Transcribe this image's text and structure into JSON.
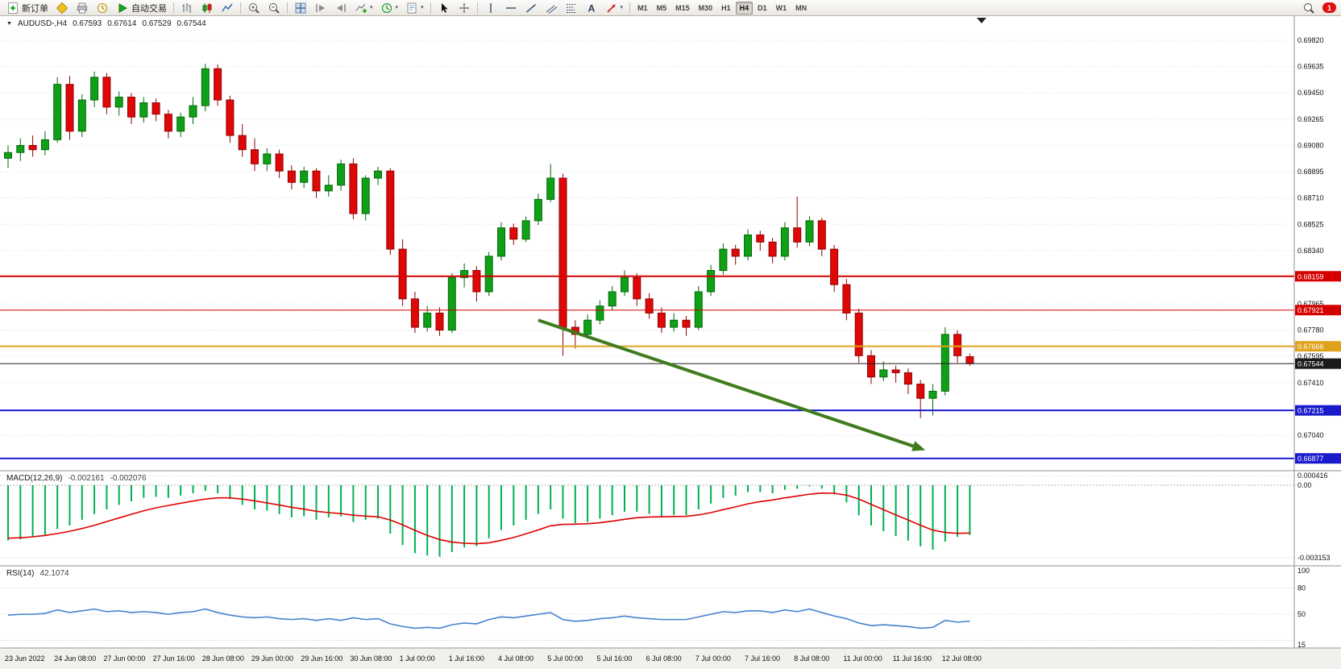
{
  "toolbar": {
    "new_order_label": "新订单",
    "autotrading_label": "自动交易",
    "badge_count": "1",
    "timeframes": [
      "M1",
      "M5",
      "M15",
      "M30",
      "H1",
      "H4",
      "D1",
      "W1",
      "MN"
    ],
    "active_timeframe": "H4",
    "items": [
      {
        "name": "new-order-button",
        "icon": "new-order-icon",
        "label": "新订单"
      },
      {
        "name": "metaeditor-button",
        "icon": "metaeditor-icon"
      },
      {
        "name": "print-button",
        "icon": "print-icon"
      },
      {
        "name": "history-center-button",
        "icon": "clock-icon"
      },
      {
        "name": "autotrading-button",
        "icon": "autotrading-play-icon",
        "label": "自动交易"
      },
      {
        "sep": true
      },
      {
        "name": "bar-chart-button",
        "icon": "bar-chart-icon"
      },
      {
        "name": "candlestick-chart-button",
        "icon": "candlestick-icon"
      },
      {
        "name": "line-chart-button",
        "icon": "line-chart-icon"
      },
      {
        "sep": true
      },
      {
        "name": "zoom-in-button",
        "icon": "zoom-in-icon"
      },
      {
        "name": "zoom-out-button",
        "icon": "zoom-out-icon"
      },
      {
        "sep": true
      },
      {
        "name": "tile-windows-button",
        "icon": "tile-windows-icon"
      },
      {
        "name": "auto-scroll-button",
        "icon": "auto-scroll-icon"
      },
      {
        "name": "chart-shift-button",
        "icon": "chart-shift-icon"
      },
      {
        "name": "indicators-button",
        "icon": "indicators-add-icon",
        "caret": true
      },
      {
        "name": "periods-button",
        "icon": "periods-clock-icon",
        "caret": true
      },
      {
        "name": "templates-button",
        "icon": "template-icon",
        "caret": true
      },
      {
        "sep": true
      },
      {
        "name": "cursor-button",
        "icon": "cursor-icon"
      },
      {
        "name": "crosshair-button",
        "icon": "crosshair-icon"
      },
      {
        "sep": true
      },
      {
        "name": "vertical-line-button",
        "icon": "vertical-line-icon"
      },
      {
        "name": "horizontal-line-button",
        "icon": "horizontal-line-icon"
      },
      {
        "name": "trendline-button",
        "icon": "trendline-icon"
      },
      {
        "name": "equidistant-channel-button",
        "icon": "channel-icon"
      },
      {
        "name": "fibonacci-button",
        "icon": "fibonacci-icon"
      },
      {
        "name": "text-button",
        "icon": "text-icon"
      },
      {
        "name": "arrows-button",
        "icon": "arrows-icon",
        "caret": true
      },
      {
        "sep": true
      }
    ]
  },
  "chart": {
    "symbol": "AUDUSD-,H4",
    "ohlc": {
      "open": "0.67593",
      "high": "0.67614",
      "low": "0.67529",
      "close": "0.67544"
    }
  },
  "indicators": {
    "macd": {
      "label": "MACD(12,26,9)",
      "value_main": "-0.002161",
      "value_signal": "-0.002076"
    },
    "rsi": {
      "label": "RSI(14)",
      "value": "42.1074"
    }
  },
  "chart_data": {
    "type": "candlestick",
    "symbol": "AUDUSD",
    "timeframe": "H4",
    "colors": {
      "up": "#0fa018",
      "down": "#e00707",
      "macd_hist": "#00b050",
      "macd_signal": "#e00000",
      "rsi_line": "#4583cf",
      "arrow": "#3e7c1d"
    },
    "price_axis": {
      "range": [
        0.66877,
        0.6982
      ],
      "ticks": [
        "0.69820",
        "0.69635",
        "0.69450",
        "0.69265",
        "0.69080",
        "0.68895",
        "0.68710",
        "0.68525",
        "0.68340",
        "0.67965",
        "0.67780",
        "0.67595",
        "0.67410",
        "0.67040"
      ]
    },
    "x_labels": [
      [
        0,
        "23 Jun 2022"
      ],
      [
        4,
        "24 Jun 08:00"
      ],
      [
        8,
        "27 Jun 00:00"
      ],
      [
        12,
        "27 Jun 16:00"
      ],
      [
        16,
        "28 Jun 08:00"
      ],
      [
        20,
        "29 Jun 00:00"
      ],
      [
        24,
        "29 Jun 16:00"
      ],
      [
        28,
        "30 Jun 08:00"
      ],
      [
        32,
        "1 Jul 00:00"
      ],
      [
        36,
        "1 Jul 16:00"
      ],
      [
        40,
        "4 Jul 08:00"
      ],
      [
        44,
        "5 Jul 00:00"
      ],
      [
        48,
        "5 Jul 16:00"
      ],
      [
        52,
        "6 Jul 08:00"
      ],
      [
        56,
        "7 Jul 00:00"
      ],
      [
        60,
        "7 Jul 16:00"
      ],
      [
        64,
        "8 Jul 08:00"
      ],
      [
        68,
        "11 Jul 00:00"
      ],
      [
        72,
        "11 Jul 16:00"
      ],
      [
        76,
        "12 Jul 08:00"
      ]
    ],
    "candles": [
      [
        0.6899,
        0.6908,
        0.6892,
        0.6903
      ],
      [
        0.6903,
        0.6913,
        0.6897,
        0.6908
      ],
      [
        0.6908,
        0.6915,
        0.69,
        0.6905
      ],
      [
        0.6905,
        0.6918,
        0.6901,
        0.6912
      ],
      [
        0.6912,
        0.6956,
        0.691,
        0.6951
      ],
      [
        0.6951,
        0.6957,
        0.6912,
        0.6918
      ],
      [
        0.6918,
        0.6944,
        0.6914,
        0.694
      ],
      [
        0.694,
        0.696,
        0.6935,
        0.6956
      ],
      [
        0.6956,
        0.6959,
        0.693,
        0.6935
      ],
      [
        0.6935,
        0.6946,
        0.6929,
        0.6942
      ],
      [
        0.6942,
        0.6945,
        0.6923,
        0.6928
      ],
      [
        0.6928,
        0.6942,
        0.6924,
        0.6938
      ],
      [
        0.6938,
        0.6941,
        0.6925,
        0.693
      ],
      [
        0.693,
        0.6933,
        0.6913,
        0.6918
      ],
      [
        0.6918,
        0.6931,
        0.6914,
        0.6928
      ],
      [
        0.6928,
        0.6942,
        0.6923,
        0.6936
      ],
      [
        0.6936,
        0.69655,
        0.6932,
        0.6962
      ],
      [
        0.6962,
        0.6965,
        0.6936,
        0.694
      ],
      [
        0.694,
        0.6943,
        0.691,
        0.6915
      ],
      [
        0.6915,
        0.6923,
        0.69,
        0.6905
      ],
      [
        0.6905,
        0.6913,
        0.689,
        0.6895
      ],
      [
        0.6895,
        0.6906,
        0.689,
        0.6902
      ],
      [
        0.6902,
        0.6905,
        0.6885,
        0.689
      ],
      [
        0.689,
        0.6894,
        0.6877,
        0.6882
      ],
      [
        0.6882,
        0.6893,
        0.6878,
        0.689
      ],
      [
        0.689,
        0.6892,
        0.6871,
        0.6876
      ],
      [
        0.6876,
        0.6887,
        0.6872,
        0.688
      ],
      [
        0.688,
        0.6898,
        0.6876,
        0.6895
      ],
      [
        0.6895,
        0.6899,
        0.6856,
        0.686
      ],
      [
        0.686,
        0.6887,
        0.6855,
        0.6885
      ],
      [
        0.6885,
        0.6893,
        0.688,
        0.689
      ],
      [
        0.689,
        0.6892,
        0.6831,
        0.6835
      ],
      [
        0.6835,
        0.6842,
        0.6795,
        0.68
      ],
      [
        0.68,
        0.6805,
        0.6776,
        0.678
      ],
      [
        0.678,
        0.6795,
        0.6777,
        0.679
      ],
      [
        0.679,
        0.6794,
        0.6774,
        0.6778
      ],
      [
        0.6778,
        0.6818,
        0.6776,
        0.6815
      ],
      [
        0.6815,
        0.6825,
        0.6808,
        0.682
      ],
      [
        0.682,
        0.6823,
        0.6798,
        0.6805
      ],
      [
        0.6805,
        0.6833,
        0.6802,
        0.683
      ],
      [
        0.683,
        0.6854,
        0.6827,
        0.685
      ],
      [
        0.685,
        0.6853,
        0.6838,
        0.6842
      ],
      [
        0.6842,
        0.6858,
        0.684,
        0.6855
      ],
      [
        0.6855,
        0.6874,
        0.6852,
        0.687
      ],
      [
        0.687,
        0.6895,
        0.6868,
        0.6885
      ],
      [
        0.6885,
        0.6888,
        0.676,
        0.678
      ],
      [
        0.678,
        0.6785,
        0.6765,
        0.6775
      ],
      [
        0.6775,
        0.6789,
        0.6772,
        0.6785
      ],
      [
        0.6785,
        0.6799,
        0.6782,
        0.6795
      ],
      [
        0.6795,
        0.6809,
        0.6792,
        0.6805
      ],
      [
        0.6805,
        0.682,
        0.6802,
        0.6815
      ],
      [
        0.6815,
        0.6818,
        0.6795,
        0.68
      ],
      [
        0.68,
        0.6804,
        0.6786,
        0.679
      ],
      [
        0.679,
        0.6794,
        0.6776,
        0.678
      ],
      [
        0.678,
        0.679,
        0.6777,
        0.6785
      ],
      [
        0.6785,
        0.6788,
        0.6774,
        0.678
      ],
      [
        0.678,
        0.6809,
        0.6778,
        0.6805
      ],
      [
        0.6805,
        0.6824,
        0.6802,
        0.682
      ],
      [
        0.682,
        0.6839,
        0.6817,
        0.6835
      ],
      [
        0.6835,
        0.6838,
        0.6824,
        0.683
      ],
      [
        0.683,
        0.6849,
        0.6827,
        0.6845
      ],
      [
        0.6845,
        0.6848,
        0.6834,
        0.684
      ],
      [
        0.684,
        0.6843,
        0.6825,
        0.683
      ],
      [
        0.683,
        0.6854,
        0.6827,
        0.685
      ],
      [
        0.685,
        0.6872,
        0.6836,
        0.684
      ],
      [
        0.684,
        0.6858,
        0.6837,
        0.6855
      ],
      [
        0.6855,
        0.6857,
        0.683,
        0.6835
      ],
      [
        0.6835,
        0.6838,
        0.6805,
        0.681
      ],
      [
        0.681,
        0.6814,
        0.6785,
        0.679
      ],
      [
        0.679,
        0.6793,
        0.6755,
        0.676
      ],
      [
        0.676,
        0.6764,
        0.674,
        0.6745
      ],
      [
        0.6745,
        0.6756,
        0.6742,
        0.675
      ],
      [
        0.675,
        0.6753,
        0.6741,
        0.6748
      ],
      [
        0.6748,
        0.6751,
        0.6733,
        0.674
      ],
      [
        0.674,
        0.6743,
        0.6716,
        0.673
      ],
      [
        0.673,
        0.674,
        0.6718,
        0.6735
      ],
      [
        0.6735,
        0.678,
        0.6732,
        0.6775
      ],
      [
        0.6775,
        0.6778,
        0.6755,
        0.676
      ],
      [
        0.67593,
        0.67614,
        0.67529,
        0.67544
      ]
    ],
    "levels": [
      {
        "price": 0.68159,
        "label": "0.68159",
        "color": "#d40000",
        "width": 2
      },
      {
        "price": 0.67921,
        "label": "0.67921",
        "color": "#d40000",
        "width": 1
      },
      {
        "price": 0.67666,
        "label": "0.67666",
        "color": "#dfa21b",
        "width": 2
      },
      {
        "price": 0.67544,
        "label": "0.67544",
        "color": "#1a1a1a",
        "width": 1
      },
      {
        "price": 0.67215,
        "label": "0.67215",
        "color": "#1a1acd",
        "width": 2
      },
      {
        "price": 0.66877,
        "label": "0.66877",
        "color": "#1a1acd",
        "width": 2
      }
    ],
    "arrow": {
      "i1": 43,
      "p1": 0.6785,
      "i2": 74.4,
      "p2": 0.66935,
      "color": "#3e7c1d"
    },
    "macd": {
      "params": "12,26,9",
      "axis_labels": [
        "0.000416",
        "0.00",
        "-0.003153"
      ],
      "range": [
        -0.003153,
        0.000416
      ],
      "histogram": [
        -0.0024,
        -0.00235,
        -0.00225,
        -0.00215,
        -0.0019,
        -0.00175,
        -0.0015,
        -0.00125,
        -0.00105,
        -0.00085,
        -0.0007,
        -0.00055,
        -0.0005,
        -0.00055,
        -0.00045,
        -0.00035,
        -0.00025,
        -0.00035,
        -0.0006,
        -0.00085,
        -0.00105,
        -0.0011,
        -0.00125,
        -0.0014,
        -0.00135,
        -0.0015,
        -0.0014,
        -0.00135,
        -0.0016,
        -0.0015,
        -0.00145,
        -0.0021,
        -0.0026,
        -0.00295,
        -0.00305,
        -0.0031,
        -0.0029,
        -0.0027,
        -0.00265,
        -0.0023,
        -0.00195,
        -0.00175,
        -0.0015,
        -0.00125,
        -0.00105,
        -0.00145,
        -0.00165,
        -0.0016,
        -0.00145,
        -0.0013,
        -0.00115,
        -0.00115,
        -0.00125,
        -0.00135,
        -0.0013,
        -0.0013,
        -0.00105,
        -0.0008,
        -0.00055,
        -0.00045,
        -0.0003,
        -0.0003,
        -0.00035,
        -0.0002,
        -0.00015,
        -5e-05,
        -0.00015,
        -0.0004,
        -0.00075,
        -0.0013,
        -0.00175,
        -0.002,
        -0.0022,
        -0.0024,
        -0.00265,
        -0.0028,
        -0.00245,
        -0.00225,
        -0.002161
      ],
      "signal": [
        -0.0023,
        -0.00228,
        -0.00224,
        -0.00218,
        -0.0021,
        -0.002,
        -0.00188,
        -0.00174,
        -0.00158,
        -0.00142,
        -0.00126,
        -0.00111,
        -0.00098,
        -0.00088,
        -0.00078,
        -0.00069,
        -0.0006,
        -0.00055,
        -0.00055,
        -0.0006,
        -0.00068,
        -0.00077,
        -0.00086,
        -0.00096,
        -0.00104,
        -0.00113,
        -0.00119,
        -0.00123,
        -0.0013,
        -0.00134,
        -0.00137,
        -0.00151,
        -0.00172,
        -0.00196,
        -0.00218,
        -0.00236,
        -0.00247,
        -0.00252,
        -0.00254,
        -0.0025,
        -0.00239,
        -0.00227,
        -0.00211,
        -0.00194,
        -0.00176,
        -0.0017,
        -0.00169,
        -0.00167,
        -0.00163,
        -0.00156,
        -0.00148,
        -0.00141,
        -0.00138,
        -0.00137,
        -0.00136,
        -0.00135,
        -0.00129,
        -0.00119,
        -0.00106,
        -0.00094,
        -0.00081,
        -0.00071,
        -0.00064,
        -0.00055,
        -0.00047,
        -0.00039,
        -0.00034,
        -0.00035,
        -0.00043,
        -0.0006,
        -0.00083,
        -0.00106,
        -0.00129,
        -0.00151,
        -0.00174,
        -0.00195,
        -0.00205,
        -0.00209,
        -0.002076
      ]
    },
    "rsi": {
      "period": 14,
      "axis_labels": [
        "100",
        "80",
        "50",
        "15"
      ],
      "levels": [
        80,
        50,
        20
      ],
      "range": [
        15,
        100
      ],
      "values": [
        49,
        50,
        50,
        51,
        55,
        52,
        54,
        56,
        53,
        54,
        52,
        53,
        52,
        50,
        52,
        53,
        56,
        52,
        49,
        47,
        46,
        47,
        45,
        44,
        45,
        43,
        45,
        43,
        46,
        44,
        45,
        39,
        36,
        34,
        35,
        34,
        38,
        40,
        39,
        44,
        47,
        46,
        48,
        50,
        52,
        44,
        42,
        43,
        45,
        46,
        48,
        46,
        45,
        44,
        44,
        44,
        47,
        50,
        53,
        52,
        54,
        54,
        52,
        55,
        53,
        56,
        52,
        48,
        45,
        40,
        37,
        38,
        37,
        36,
        34,
        35,
        43,
        41,
        42.11
      ]
    }
  }
}
